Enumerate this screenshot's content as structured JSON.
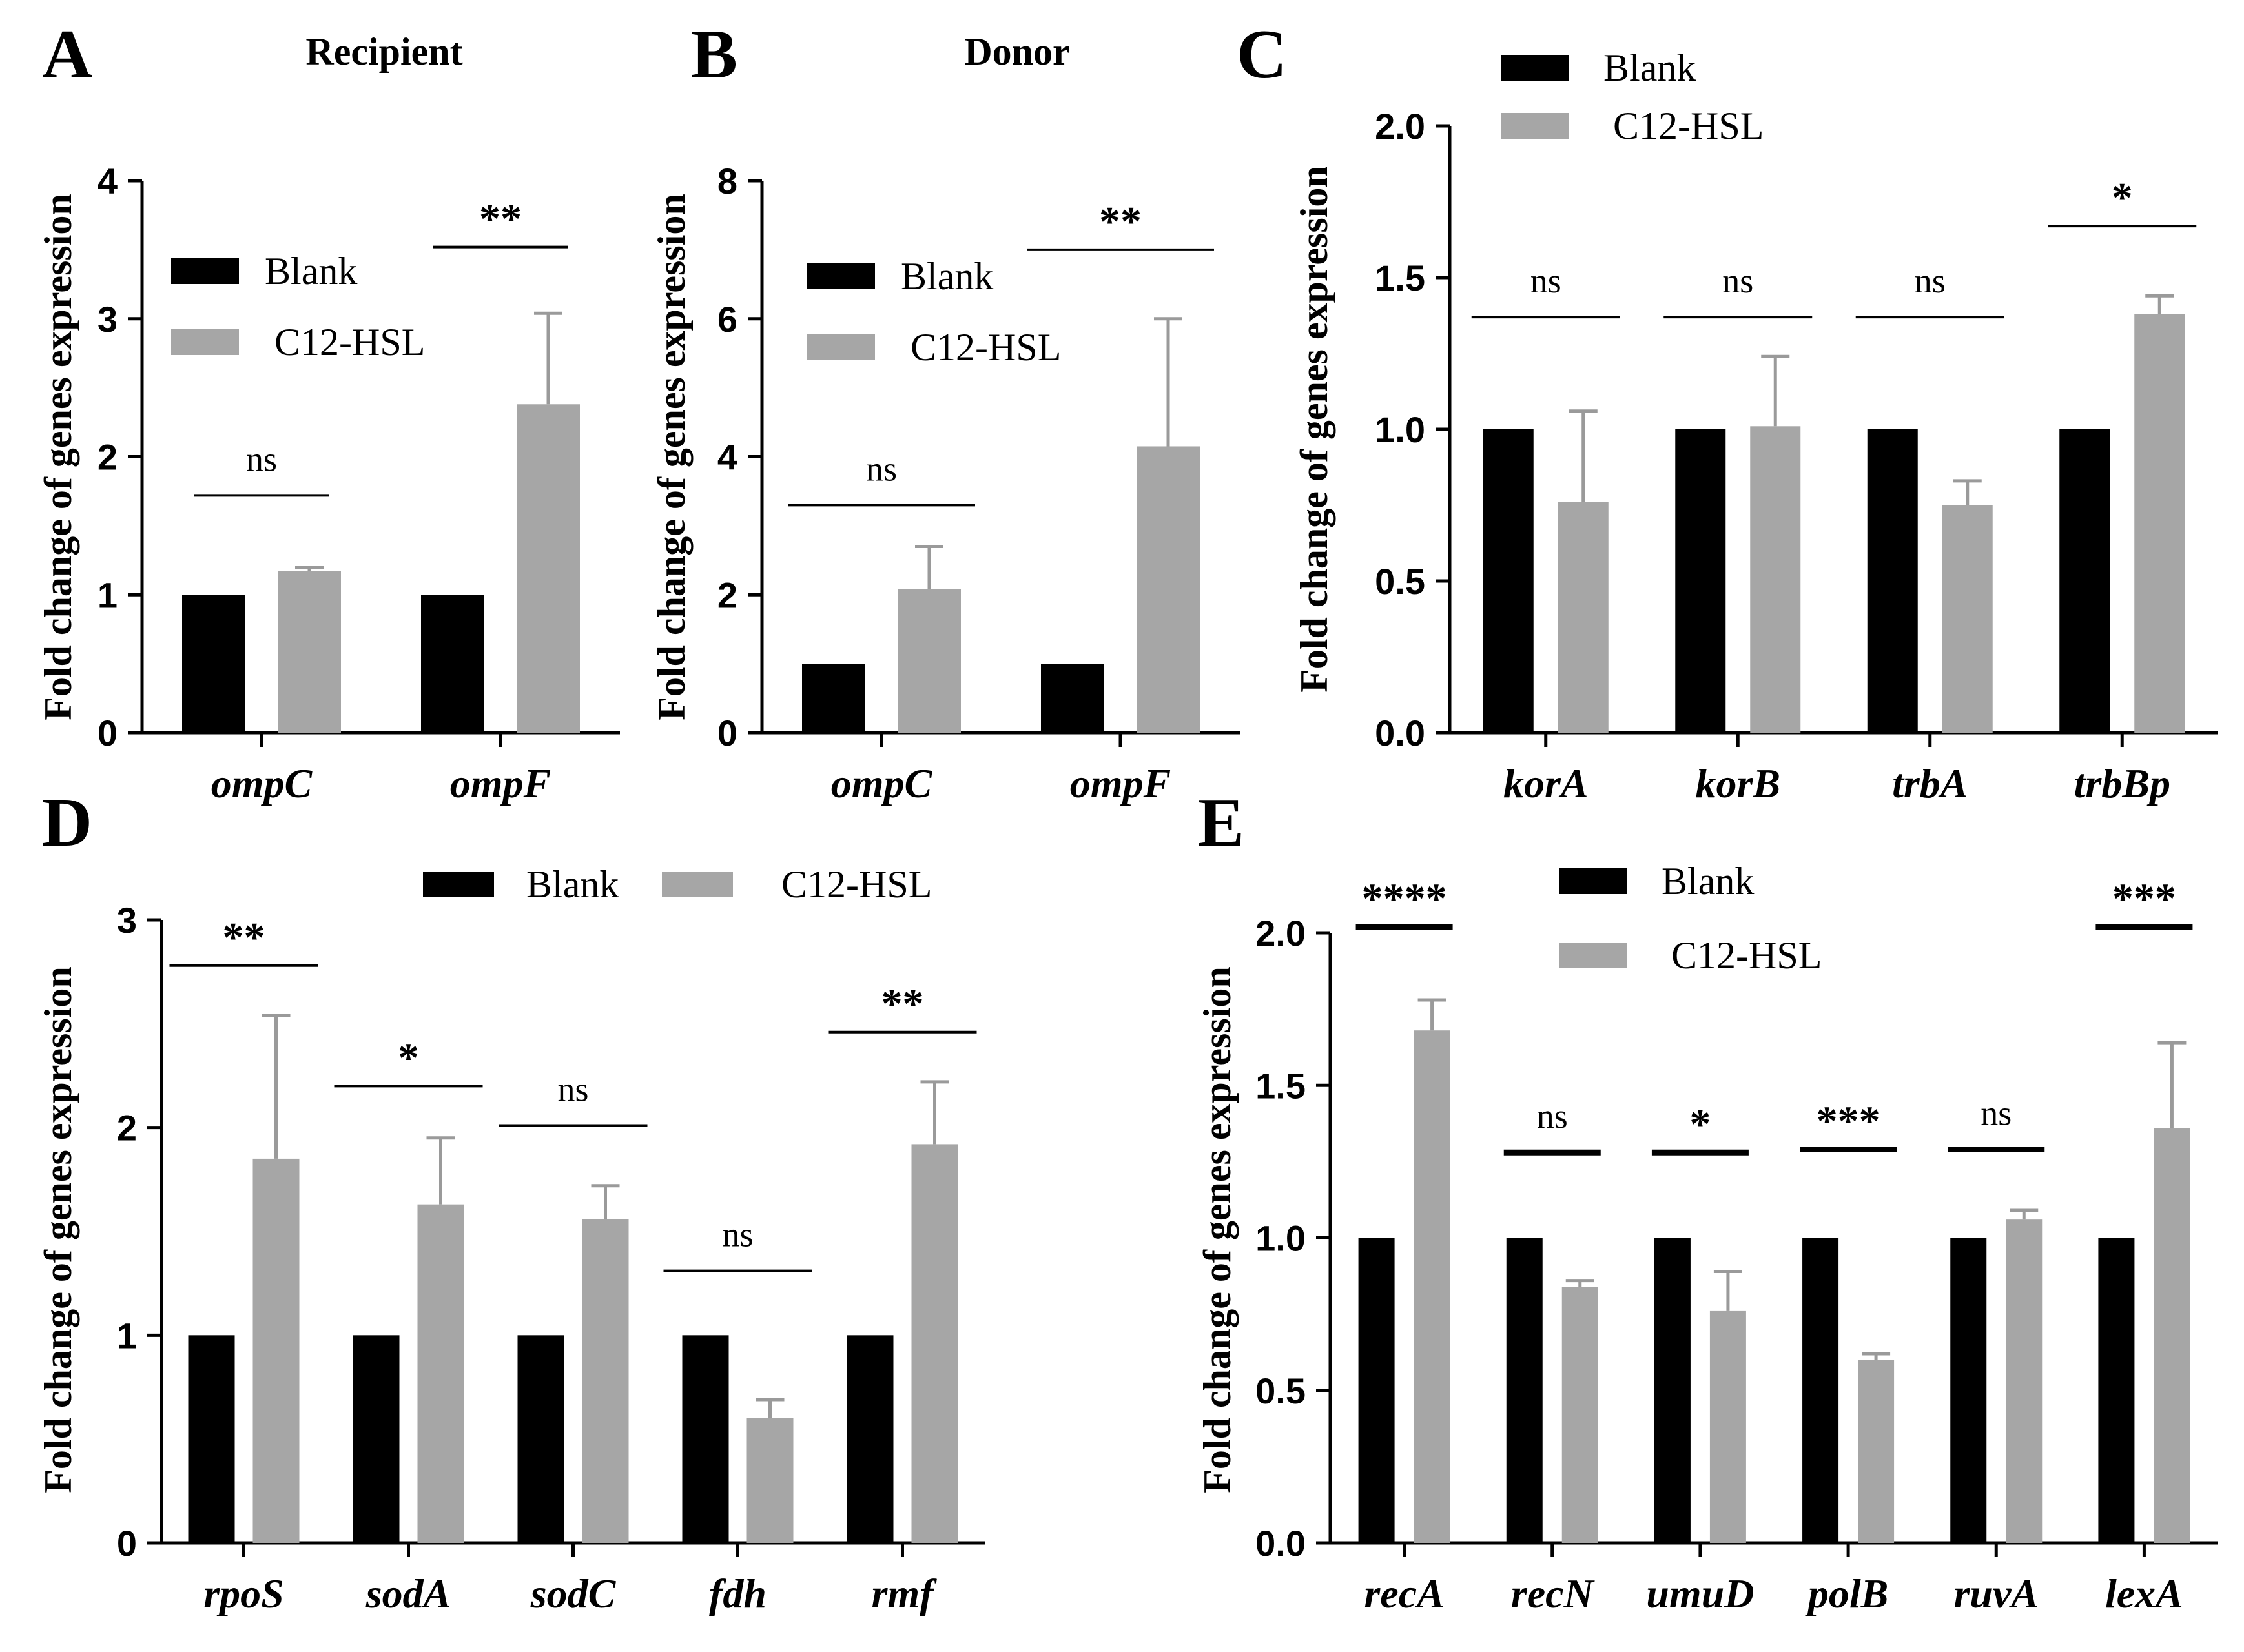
{
  "legend": {
    "blank": "Blank",
    "treated": "C12-HSL"
  },
  "colors": {
    "blank": "#000000",
    "treated": "#a6a6a6",
    "error": "#9a9a9a",
    "axis": "#000000"
  },
  "chart_data": [
    {
      "panel": "A",
      "title": "Recipient",
      "type": "bar",
      "ylabel": "Fold change of genes expression",
      "ylim": [
        0,
        4
      ],
      "yticks": [
        0,
        1,
        2,
        3,
        4
      ],
      "ytick_labels": [
        "0",
        "1",
        "2",
        "3",
        "4"
      ],
      "categories": [
        "ompC",
        "ompF"
      ],
      "series": [
        {
          "name": "Blank",
          "values": [
            1.0,
            1.0
          ]
        },
        {
          "name": "C12-HSL",
          "values": [
            1.17,
            2.38
          ],
          "errors": [
            0.03,
            0.66
          ]
        }
      ],
      "significance": [
        "ns",
        "**"
      ],
      "legend_position": "upper-left"
    },
    {
      "panel": "B",
      "title": "Donor",
      "type": "bar",
      "ylabel": "Fold change of genes expression",
      "ylim": [
        0,
        8
      ],
      "yticks": [
        0,
        2,
        4,
        6,
        8
      ],
      "ytick_labels": [
        "0",
        "2",
        "4",
        "6",
        "8"
      ],
      "categories": [
        "ompC",
        "ompF"
      ],
      "series": [
        {
          "name": "Blank",
          "values": [
            1.0,
            1.0
          ]
        },
        {
          "name": "C12-HSL",
          "values": [
            2.08,
            4.15
          ],
          "errors": [
            0.62,
            1.85
          ]
        }
      ],
      "significance": [
        "ns",
        "**"
      ],
      "legend_position": "upper-left"
    },
    {
      "panel": "C",
      "title": "",
      "type": "bar",
      "ylabel": "Fold change of genes expression",
      "ylim": [
        0,
        2.0
      ],
      "yticks": [
        0,
        0.5,
        1.0,
        1.5,
        2.0
      ],
      "ytick_labels": [
        "0.0",
        "0.5",
        "1.0",
        "1.5",
        "2.0"
      ],
      "categories": [
        "korA",
        "korB",
        "trbA",
        "trbBp"
      ],
      "series": [
        {
          "name": "Blank",
          "values": [
            1.0,
            1.0,
            1.0,
            1.0
          ]
        },
        {
          "name": "C12-HSL",
          "values": [
            0.76,
            1.01,
            0.75,
            1.38
          ],
          "errors": [
            0.3,
            0.23,
            0.08,
            0.06
          ]
        }
      ],
      "significance": [
        "ns",
        "ns",
        "ns",
        "*"
      ],
      "legend_position": "top-left"
    },
    {
      "panel": "D",
      "title": "",
      "type": "bar",
      "ylabel": "Fold change of genes expression",
      "ylim": [
        0,
        3
      ],
      "yticks": [
        0,
        1,
        2,
        3
      ],
      "ytick_labels": [
        "0",
        "1",
        "2",
        "3"
      ],
      "categories": [
        "rpoS",
        "sodA",
        "sodC",
        "fdh",
        "rmf"
      ],
      "series": [
        {
          "name": "Blank",
          "values": [
            1.0,
            1.0,
            1.0,
            1.0,
            1.0
          ]
        },
        {
          "name": "C12-HSL",
          "values": [
            1.85,
            1.63,
            1.56,
            0.6,
            1.92
          ],
          "errors": [
            0.69,
            0.32,
            0.16,
            0.09,
            0.3
          ]
        }
      ],
      "significance": [
        "**",
        "*",
        "ns",
        "ns",
        "**"
      ],
      "legend_position": "top"
    },
    {
      "panel": "E",
      "title": "",
      "type": "bar",
      "ylabel": "Fold change of genes expression",
      "ylim": [
        0,
        2.0
      ],
      "yticks": [
        0,
        0.5,
        1.0,
        1.5,
        2.0
      ],
      "ytick_labels": [
        "0.0",
        "0.5",
        "1.0",
        "1.5",
        "2.0"
      ],
      "categories": [
        "recA",
        "recN",
        "umuD",
        "polB",
        "ruvA",
        "lexA"
      ],
      "series": [
        {
          "name": "Blank",
          "values": [
            1.0,
            1.0,
            1.0,
            1.0,
            1.0,
            1.0
          ]
        },
        {
          "name": "C12-HSL",
          "values": [
            1.68,
            0.84,
            0.76,
            0.6,
            1.06,
            1.36
          ],
          "errors": [
            0.1,
            0.02,
            0.13,
            0.02,
            0.03,
            0.28
          ]
        }
      ],
      "significance": [
        "****",
        "ns",
        "*",
        "***",
        "ns",
        "***"
      ],
      "legend_position": "top"
    }
  ]
}
